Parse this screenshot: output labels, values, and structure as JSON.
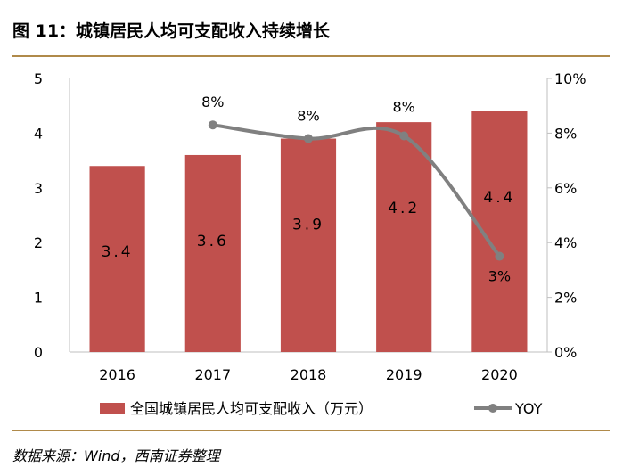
{
  "title": "图 11：城镇居民人均可支配收入持续增长",
  "source": "数据来源：Wind，西南证券整理",
  "chart_data": {
    "type": "bar",
    "categories": [
      "2016",
      "2017",
      "2018",
      "2019",
      "2020"
    ],
    "series": [
      {
        "name": "全国城镇居民人均可支配收入（万元）",
        "type": "bar",
        "axis": "left",
        "values": [
          3.4,
          3.6,
          3.9,
          4.2,
          4.4
        ],
        "labels": [
          "3.4",
          "3.6",
          "3.9",
          "4.2",
          "4.4"
        ],
        "color": "#c0504d"
      },
      {
        "name": "YOY",
        "type": "line",
        "axis": "right",
        "values": [
          8.3,
          7.8,
          7.9,
          3.5
        ],
        "x": [
          "2017",
          "2018",
          "2019",
          "2020"
        ],
        "labels": [
          "8%",
          "8%",
          "8%",
          "3%"
        ],
        "color": "#808080"
      }
    ],
    "y_left": {
      "ylim": [
        0,
        5
      ],
      "ticks": [
        "0",
        "1",
        "2",
        "3",
        "4",
        "5"
      ]
    },
    "y_right": {
      "ylim": [
        0,
        10
      ],
      "ticks": [
        "0%",
        "2%",
        "4%",
        "6%",
        "8%",
        "10%"
      ]
    },
    "legend_position": "bottom",
    "grid": false
  }
}
